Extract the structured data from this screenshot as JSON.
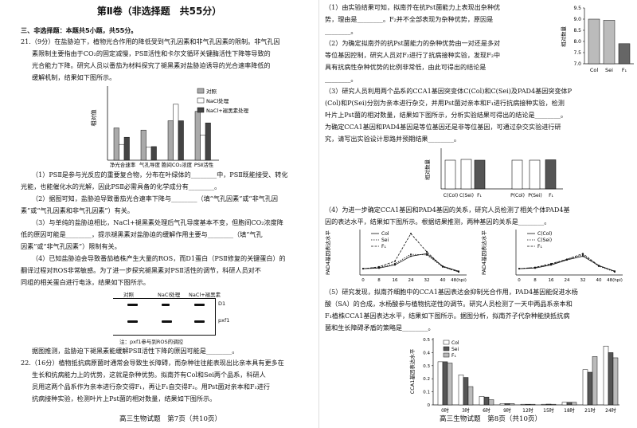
{
  "left": {
    "heading": "第Ⅱ卷（非选择题　共55分）",
    "section": "三、非选择题：本题共5小题，共55分。",
    "q21": [
      "21.（9分）在盐胁迫下，植物光合作用的降低受到气孔因素和非气孔因素的限制。非气孔因",
      "素限制主要指由于CO₂的固定减慢，PSⅡ活性和卡尔文循环关键酶活性下降等导致的",
      "光合能力下降。研究人员以番茄为材料探究了褪黑素对盐胁迫诱导的光合速率降低的",
      "缓解机制，结果如下图所示。"
    ],
    "fig1": {
      "ylabel": "相对值",
      "categories": [
        "净光合速率",
        "气孔导度",
        "胞间CO₂浓度",
        "PSⅡ活性"
      ],
      "legend": [
        "对照",
        "NaCl处理",
        "NaCl+褪黑素处理"
      ]
    },
    "q21_parts": [
      "（1）PSⅡ是参与光反应的重要复合物，分布在叶绿体的________中，PSⅡ既能接受、转化",
      "光能，也能催化水的光解，因此PSⅡ必需具备的化学成分有________。",
      "（2）据图可知，盐胁迫导致番茄光合速率下降与________（填“气孔因素”或“非气孔因",
      "素”或“气孔因素和非气孔因素”）有关。",
      "（3）与单纯的盐胁迫相比，NaCl+褪黑素处理后气孔导度基本不变，但胞间CO₂浓度降",
      "低的原因可能是________，提示褪黑素对盐胁迫的缓解作用主要与________（填“气孔",
      "因素”或“非气孔因素”）限制有关。",
      "（4）已知盐胁迫会导致番茄植株产生大量的ROS，而D1蛋白（PSⅡ修复的关键蛋白）的",
      "翻译过程对ROS非常敏感。为了进一步探究褪黑素对PSⅡ活性的调节，科研人员对不",
      "同组的相关蛋白进行电泳，结果如下图所示。"
    ],
    "gel": {
      "cols": [
        "对照",
        "NaCl处理",
        "NaCl+褪黑素"
      ],
      "rows": [
        "D1",
        "pxf1"
      ],
      "note": "注：pxf1参与到ROS的调控"
    },
    "q21_end": "据图推测，盐胁迫下褪黑素能缓解PSⅡ活性下降的原因可能是________。",
    "q22": [
      "22.（16分）植物抵抗病原菌时通常会导致生长障碍，而杂种往往能表现出比亲本具有更多在",
      "生长和抗病能力上的优势，这就是杂种优势。拟南芥有Col和Sei两个品系，科研人",
      "员用这两个品系作为亲本进行杂交得F₁，再让F₁自交得F₂。用Pst菌对亲本和F₁进行",
      "抗病接种实验，检测叶片上Pst菌的相对数量，结果如下图所示。"
    ],
    "footer": "高三生物试题　第7页（共10页）"
  },
  "right": {
    "p1": [
      "（1）由实验结果可知，拟南芥在抗Pst菌能力上表现出杂种优",
      "势，理由是________。F₂并不全部表现为杂种优势，原因是",
      "________。",
      "（2）为确定拟南芥的抗Pst菌能力的杂种优势由一对还是多对",
      "等位基因控制，研究人员对F₂进行了抗病接种实验，发现F₂中",
      "具有抗病性杂种优势的比例非常低，由此可得出的结论是",
      "________。"
    ],
    "fig2": {
      "ylabel": "相对数量",
      "categories": [
        "Col",
        "Sei",
        "F₁"
      ],
      "values": [
        9.0,
        8.95,
        7.9
      ],
      "ylim": [
        7.0,
        9.5
      ],
      "ticks": [
        "9.5",
        "9.0",
        "8.5",
        "8.0",
        "7.5",
        "7.0"
      ]
    },
    "p3": [
      "（3）研究人员利用两个品系的CCA1基因突变体C(Col)和C(Sei)及PAD4基因突变体P",
      "(Col)和P(Sei)分别为亲本进行杂交，并用Pst菌对亲本和F₁进行抗病接种实验，检测",
      "叶片上Pst菌的相对数量，结果如下图所示，分析实验结果可得出的结论是________。",
      "为确定CCA1基因和PAD4基因是等位基因还是非等位基因，可通过杂交实验进行研",
      "究，请写出实验设计思路并预期结果________。"
    ],
    "fig3": {
      "ylabel": "相对数量",
      "categories": [
        "C(Col)",
        "C(Sei)",
        "F₁",
        "P(Col)",
        "P(Sei)",
        "F₁"
      ]
    },
    "p4": [
      "（4）为进一步确定CCA1基因和PAD4基因的关系，研究人员检测了相关个体PAD4基",
      "因的表达水平，结果如下图所示。根据结果推测，两种基因的关系是________。"
    ],
    "fig4a": {
      "ylabel": "PAD4基因表达水平",
      "legend": [
        "Col",
        "Sei",
        "F₁"
      ],
      "x": [
        "0",
        "8",
        "16",
        "24",
        "32",
        "40",
        "48(hpi)"
      ],
      "series": [
        {
          "name": "Col",
          "values": [
            1.0,
            1.1,
            1.6,
            3.0,
            3.4,
            1.4,
            0.6
          ]
        },
        {
          "name": "Sei",
          "values": [
            1.0,
            1.2,
            1.8,
            3.3,
            3.2,
            1.3,
            0.5
          ]
        },
        {
          "name": "F₁",
          "values": [
            1.0,
            1.3,
            2.2,
            6.6,
            3.7,
            1.3,
            0.5
          ]
        }
      ]
    },
    "fig4b": {
      "ylabel": "PAD4基因表达水平",
      "legend": [
        "C(Col)",
        "C(Sei)",
        "F₁"
      ],
      "x": [
        "0",
        "8",
        "16",
        "24",
        "32",
        "40",
        "48(hpi)"
      ],
      "series": [
        {
          "name": "C(Col)",
          "values": [
            1.0,
            1.1,
            1.6,
            2.4,
            3.0,
            1.5,
            0.6
          ]
        },
        {
          "name": "C(Sei)",
          "values": [
            1.0,
            1.2,
            1.7,
            2.5,
            3.2,
            1.4,
            0.5
          ]
        },
        {
          "name": "F₁",
          "values": [
            1.0,
            1.2,
            1.8,
            2.5,
            3.4,
            1.5,
            0.6
          ]
        }
      ]
    },
    "p5": [
      "（5）研究发现，拟南芥细胞中的CCA1基因表达会抑制光合作用，PAD4基因能促进水杨",
      "酸（SA）的合成，水杨酸参与植物抗逆性的调节。研究人员检测了一天中两品系亲本和",
      "F₁植株CCA1基因表达水平，结果如下图所示。据图分析，拟南芥子代杂种能抉抵抗病",
      "菌和生长障碍矛盾的策略是________。"
    ],
    "fig5": {
      "ylabel": "CCA1基因表达水平",
      "legend": [
        "Col",
        "Sei",
        "F₁"
      ],
      "x": [
        "0时",
        "3时",
        "6时",
        "9时",
        "12时",
        "15时",
        "18时",
        "21时",
        "24时"
      ],
      "series": [
        {
          "name": "Col",
          "values": [
            0.33,
            0.23,
            0.065,
            0.01,
            0.005,
            0.005,
            0.02,
            0.27,
            0.45
          ]
        },
        {
          "name": "Sei",
          "values": [
            0.33,
            0.21,
            0.06,
            0.01,
            0.005,
            0.006,
            0.02,
            0.25,
            0.4
          ]
        },
        {
          "name": "F₁",
          "values": [
            0.32,
            0.14,
            0.04,
            0.01,
            0.005,
            0.005,
            0.02,
            0.37,
            0.36
          ]
        }
      ],
      "ticks": [
        "0.5",
        "0.4",
        "0.3",
        "0.2",
        "0.1",
        "0"
      ]
    },
    "footer": "高三生物试题　第8页（共10页）"
  }
}
